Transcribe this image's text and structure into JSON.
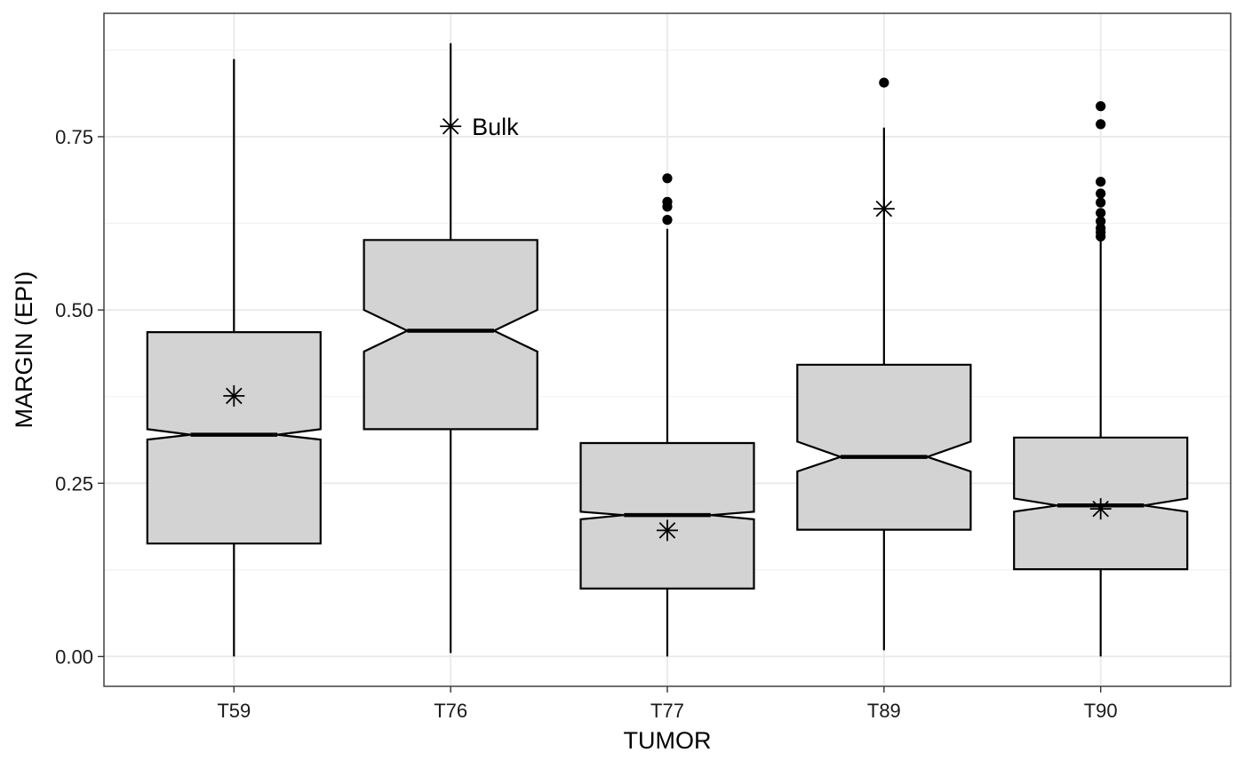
{
  "chart_data": {
    "type": "boxplot",
    "notched": true,
    "xlabel": "TUMOR",
    "ylabel": "MARGIN (EPI)",
    "ylim": [
      -0.043,
      0.928
    ],
    "yticks": [
      0.0,
      0.25,
      0.5,
      0.75
    ],
    "ytick_labels": [
      "0.00",
      "0.25",
      "0.50",
      "0.75"
    ],
    "grid": true,
    "box_fill": "#d3d3d3",
    "categories": [
      "T59",
      "T76",
      "T77",
      "T89",
      "T90"
    ],
    "boxes": [
      {
        "category": "T59",
        "whisker_low": 0.0,
        "q1": 0.163,
        "median": 0.32,
        "q3": 0.468,
        "whisker_high": 0.862,
        "notch_low": 0.313,
        "notch_high": 0.328,
        "outliers": [],
        "bulk": 0.376
      },
      {
        "category": "T76",
        "whisker_low": 0.005,
        "q1": 0.328,
        "median": 0.47,
        "q3": 0.601,
        "whisker_high": 0.885,
        "notch_low": 0.44,
        "notch_high": 0.5,
        "outliers": [],
        "bulk": 0.765
      },
      {
        "category": "T77",
        "whisker_low": 0.0,
        "q1": 0.098,
        "median": 0.204,
        "q3": 0.308,
        "whisker_high": 0.617,
        "notch_low": 0.198,
        "notch_high": 0.209,
        "outliers": [
          0.63,
          0.649,
          0.656,
          0.69
        ],
        "bulk": 0.182
      },
      {
        "category": "T89",
        "whisker_low": 0.009,
        "q1": 0.183,
        "median": 0.288,
        "q3": 0.421,
        "whisker_high": 0.763,
        "notch_low": 0.267,
        "notch_high": 0.31,
        "outliers": [
          0.828
        ],
        "bulk": 0.646
      },
      {
        "category": "T90",
        "whisker_low": 0.0,
        "q1": 0.126,
        "median": 0.218,
        "q3": 0.316,
        "whisker_high": 0.603,
        "notch_low": 0.209,
        "notch_high": 0.228,
        "outliers": [
          0.606,
          0.612,
          0.618,
          0.628,
          0.64,
          0.655,
          0.668,
          0.685,
          0.768,
          0.794
        ],
        "bulk": 0.213
      }
    ],
    "annotations": [
      {
        "category": "T76",
        "y": 0.765,
        "text": "Bulk"
      }
    ]
  }
}
